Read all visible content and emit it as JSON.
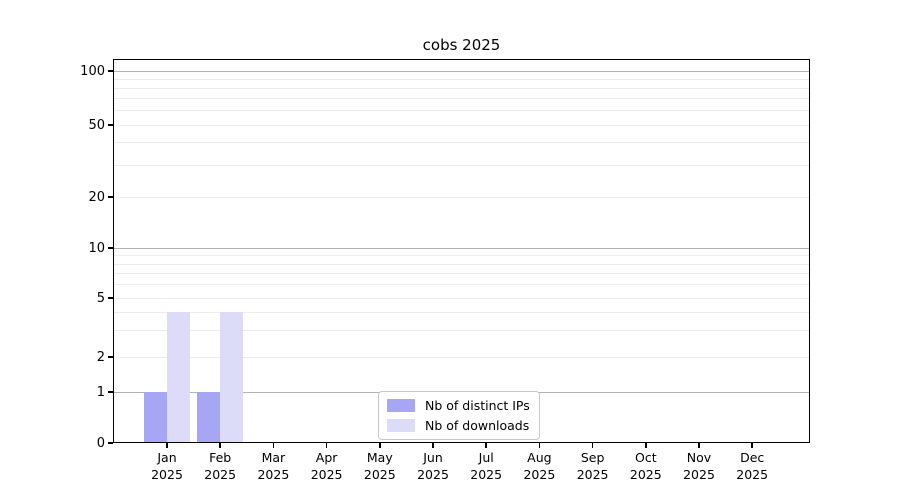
{
  "chart_data": {
    "type": "bar",
    "title": "cobs 2025",
    "xlabel": "",
    "ylabel": "",
    "categories": [
      "Jan\n2025",
      "Feb\n2025",
      "Mar\n2025",
      "Apr\n2025",
      "May\n2025",
      "Jun\n2025",
      "Jul\n2025",
      "Aug\n2025",
      "Sep\n2025",
      "Oct\n2025",
      "Nov\n2025",
      "Dec\n2025"
    ],
    "series": [
      {
        "name": "Nb of distinct IPs",
        "color": "#a6a6f4",
        "values": [
          1,
          1,
          0,
          0,
          0,
          0,
          0,
          0,
          0,
          0,
          0,
          0
        ]
      },
      {
        "name": "Nb of downloads",
        "color": "#dcdcf9",
        "values": [
          4,
          4,
          0,
          0,
          0,
          0,
          0,
          0,
          0,
          0,
          0,
          0
        ]
      }
    ],
    "y_ticks": [
      0,
      1,
      2,
      5,
      10,
      20,
      50,
      100
    ],
    "ylim": [
      0,
      130
    ],
    "yscale": "log-like with linear 0-1 segment",
    "grid": "horizontal, minor light + major at powers of 10",
    "legend_position": "lower center"
  },
  "colors": {
    "grid_minor": "#ececec",
    "grid_major": "#b2b2b2",
    "spine": "#000000",
    "legend_border": "#c9c9c9"
  }
}
